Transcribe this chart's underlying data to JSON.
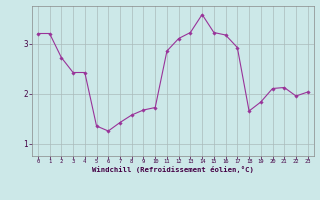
{
  "xlabel": "Windchill (Refroidissement éolien,°C)",
  "background_color": "#cce8e8",
  "line_color": "#993399",
  "marker_color": "#993399",
  "grid_color": "#aabbbb",
  "x": [
    0,
    1,
    2,
    3,
    4,
    5,
    6,
    7,
    8,
    9,
    10,
    11,
    12,
    13,
    14,
    15,
    16,
    17,
    18,
    19,
    20,
    21,
    22,
    23
  ],
  "y": [
    3.2,
    3.2,
    2.72,
    2.42,
    2.42,
    1.35,
    1.25,
    1.42,
    1.57,
    1.67,
    1.72,
    2.85,
    3.1,
    3.22,
    3.58,
    3.22,
    3.17,
    2.92,
    1.65,
    1.83,
    2.1,
    2.12,
    1.95,
    2.03
  ],
  "ylim": [
    0.75,
    3.75
  ],
  "xlim": [
    -0.5,
    23.5
  ],
  "yticks": [
    1,
    2,
    3
  ],
  "xticks": [
    0,
    1,
    2,
    3,
    4,
    5,
    6,
    7,
    8,
    9,
    10,
    11,
    12,
    13,
    14,
    15,
    16,
    17,
    18,
    19,
    20,
    21,
    22,
    23
  ],
  "figsize": [
    3.2,
    2.0
  ],
  "dpi": 100
}
